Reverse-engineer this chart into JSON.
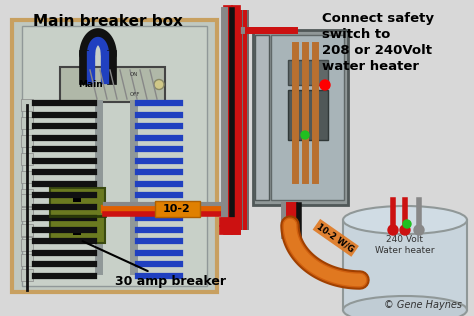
{
  "bg_color": "#d8d8d8",
  "title_text": "Main breaker box",
  "right_label": "Connect safety\nswitch to\n208 or 240Volt\nwater heater",
  "breaker_label": "30 amp breaker",
  "wire_label_1": "10-2",
  "wire_label_2": "10-2 W/G",
  "waterheater_label": "240 Volt\nWater heater",
  "copyright": "© Gene Haynes",
  "panel_outer_border": "#c8a060",
  "panel_inner_bg": "#c0c8c0",
  "main_breaker_bg": "#b8c0b0",
  "bus_color": "#808888",
  "blue_wire": "#2040c0",
  "black_wire": "#111111",
  "red_wire": "#cc1111",
  "gray_wire": "#888888",
  "orange_wire": "#d06000",
  "orange_label_bg": "#e08000",
  "breaker30_color": "#6b7a20",
  "sw_box_outer": "#808888",
  "sw_box_inner": "#a0acb4",
  "copper_wire": "#b87030",
  "wh_top_color": "#c0c8d0",
  "wh_body_color": "#d0d8e0"
}
